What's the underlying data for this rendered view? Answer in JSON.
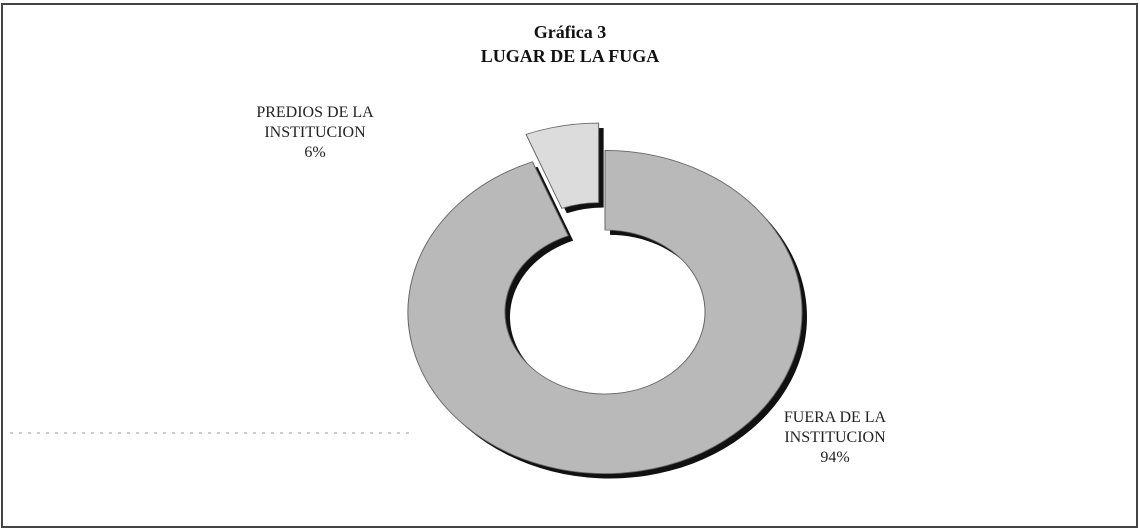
{
  "chart_data": {
    "type": "donut",
    "title": "Gráfica 3",
    "subtitle": "LUGAR DE LA FUGA",
    "categories": [
      "PREDIOS DE LA INSTITUCION",
      "FUERA DE LA INSTITUCION"
    ],
    "values": [
      6,
      94
    ],
    "value_labels": [
      "6%",
      "94%"
    ],
    "colors": [
      "#dcdcdc",
      "#b9b9b9"
    ]
  }
}
